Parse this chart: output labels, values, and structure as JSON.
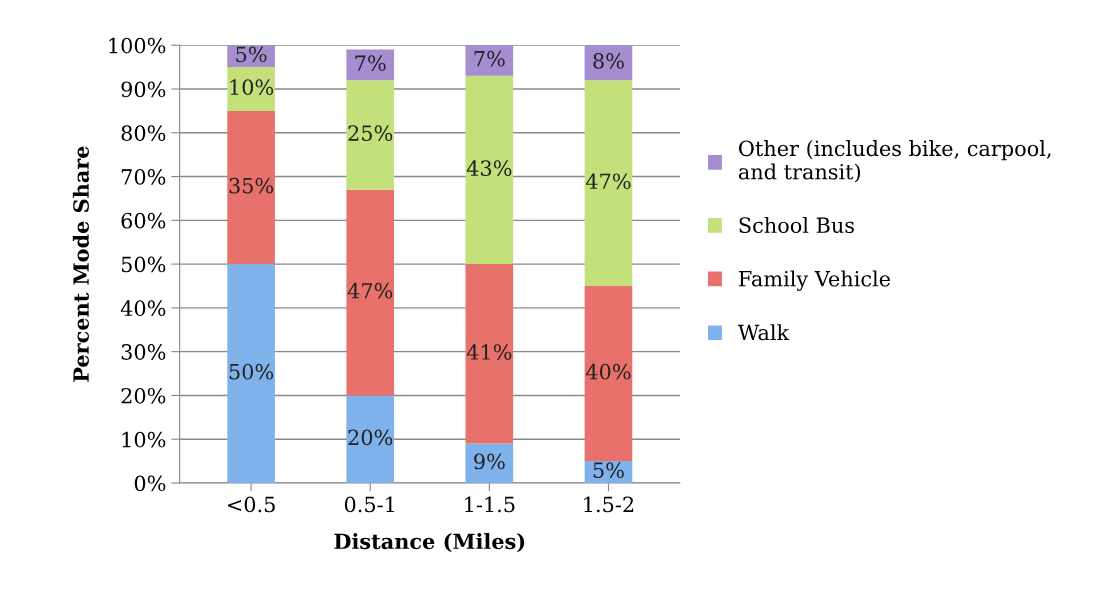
{
  "chart_data": {
    "type": "bar",
    "stacked": true,
    "xlabel": "Distance (Miles)",
    "ylabel": "Percent Mode Share",
    "categories": [
      "<0.5",
      "0.5-1",
      "1-1.5",
      "1.5-2"
    ],
    "series": [
      {
        "name": "Walk",
        "color": "#7fb2ea",
        "values": [
          50,
          20,
          9,
          5
        ],
        "value_labels": [
          "50%",
          "20%",
          "9%",
          "5%"
        ]
      },
      {
        "name": "Family Vehicle",
        "color": "#e8716b",
        "values": [
          35,
          47,
          41,
          40
        ],
        "value_labels": [
          "35%",
          "47%",
          "41%",
          "40%"
        ]
      },
      {
        "name": "School Bus",
        "color": "#c4e07a",
        "values": [
          10,
          25,
          43,
          47
        ],
        "value_labels": [
          "10%",
          "25%",
          "43%",
          "47%"
        ]
      },
      {
        "name": "Other (includes bike, carpool,\nand transit)",
        "color": "#a58dd0",
        "values": [
          5,
          7,
          7,
          8
        ],
        "value_labels": [
          "5%",
          "7%",
          "7%",
          "8%"
        ]
      }
    ],
    "ylim": [
      0,
      100
    ],
    "yticks": [
      {
        "value": 0,
        "label": "0%"
      },
      {
        "value": 10,
        "label": "10%"
      },
      {
        "value": 20,
        "label": "20%"
      },
      {
        "value": 30,
        "label": "30%"
      },
      {
        "value": 40,
        "label": "40%"
      },
      {
        "value": 50,
        "label": "50%"
      },
      {
        "value": 60,
        "label": "60%"
      },
      {
        "value": 70,
        "label": "70%"
      },
      {
        "value": 80,
        "label": "80%"
      },
      {
        "value": 90,
        "label": "90%"
      },
      {
        "value": 100,
        "label": "100%"
      }
    ],
    "grid": "y",
    "legend": "right"
  }
}
